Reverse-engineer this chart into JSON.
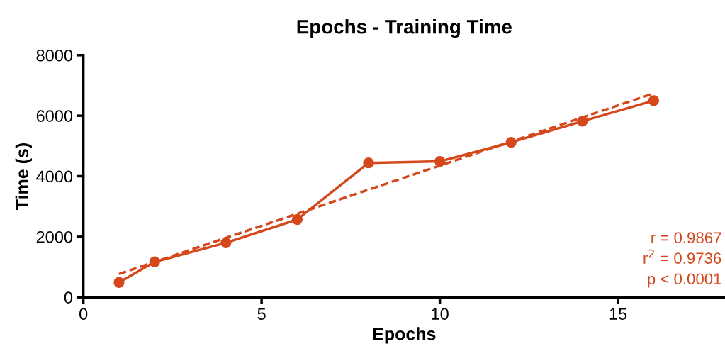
{
  "chart_data": {
    "type": "line",
    "title": "Epochs - Training Time",
    "xlabel": "Epochs",
    "ylabel": "Time (s)",
    "x": [
      1,
      2,
      4,
      6,
      8,
      10,
      12,
      14,
      16
    ],
    "series": [
      {
        "color": "#d4481b",
        "values": [
          490,
          1170,
          1800,
          2570,
          4440,
          4490,
          5120,
          5820,
          6500
        ],
        "marker": "circle",
        "line_style": "solid"
      },
      {
        "type": "line",
        "color": "#d4481b",
        "x": [
          1,
          16
        ],
        "values": [
          770,
          6740
        ],
        "marker": "none",
        "line_style": "dashed"
      }
    ],
    "xlim": [
      0,
      18
    ],
    "xticks": [
      0,
      5,
      10,
      15
    ],
    "ylim": [
      0,
      8000
    ],
    "yticks": [
      0,
      2000,
      4000,
      6000,
      8000
    ],
    "grid": false,
    "legend": false,
    "annotations": [
      "r = 0.9867",
      "r$^{2}$ = 0.9736",
      "p < 0.0001"
    ]
  }
}
